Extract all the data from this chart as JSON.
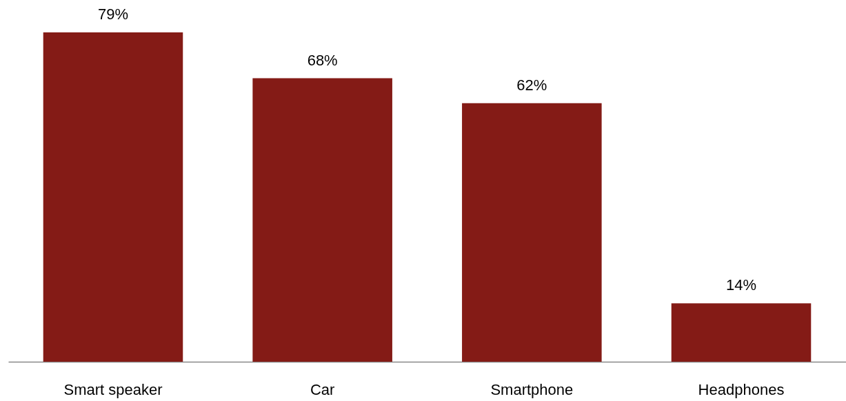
{
  "chart_data": {
    "type": "bar",
    "categories": [
      "Smart speaker",
      "Car",
      "Smartphone",
      "Headphones"
    ],
    "values": [
      79,
      68,
      62,
      14
    ],
    "value_labels": [
      "79%",
      "68%",
      "62%",
      "14%"
    ],
    "color": "#841b16"
  }
}
